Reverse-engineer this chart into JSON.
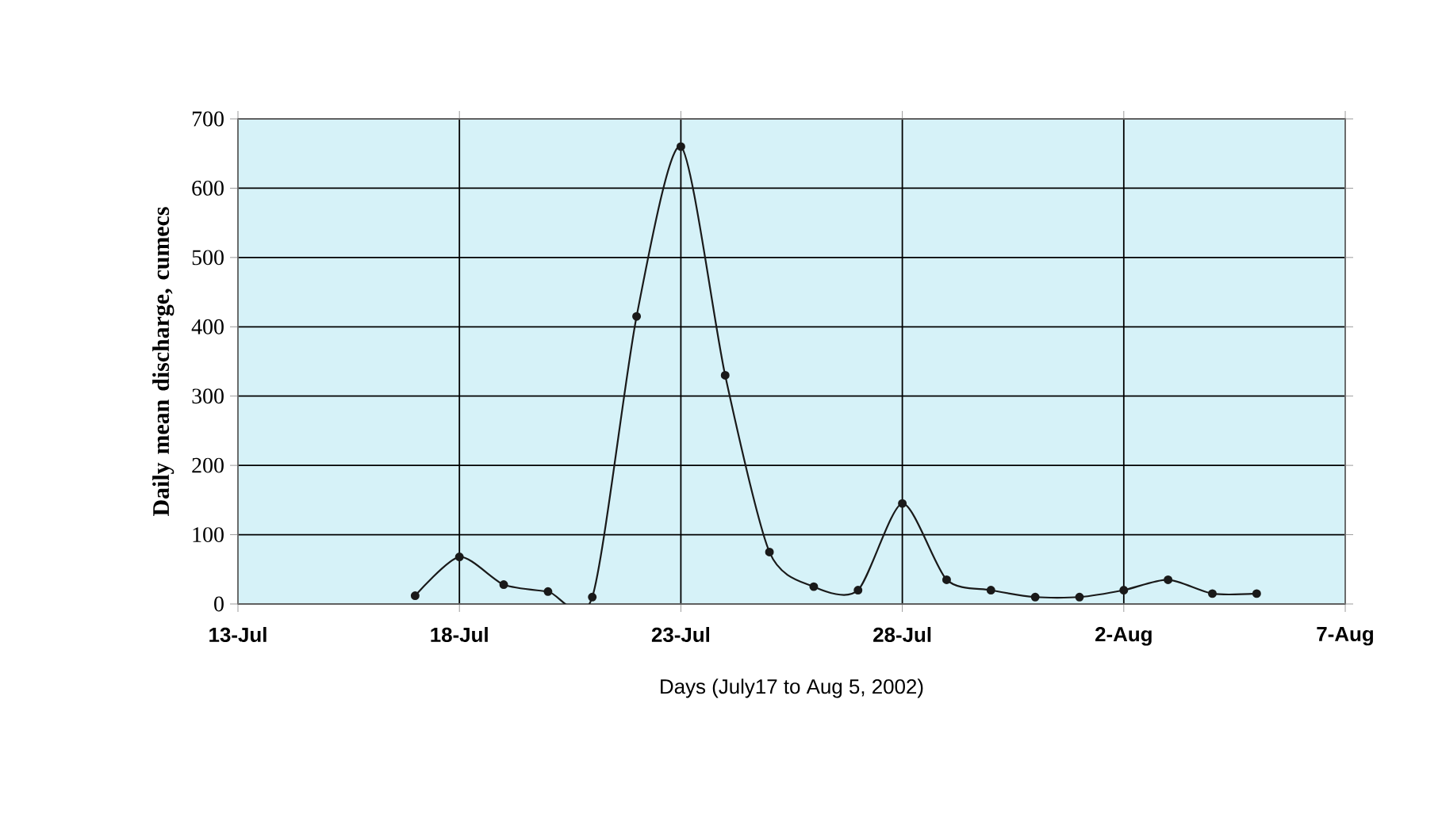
{
  "chart_data": {
    "type": "line",
    "xlabel": "Days (July17 to Aug 5, 2002)",
    "ylabel": "Daily mean discharge, cumecs",
    "x": [
      "2002-07-17",
      "2002-07-18",
      "2002-07-19",
      "2002-07-20",
      "2002-07-21",
      "2002-07-22",
      "2002-07-23",
      "2002-07-24",
      "2002-07-25",
      "2002-07-26",
      "2002-07-27",
      "2002-07-28",
      "2002-07-29",
      "2002-07-30",
      "2002-07-31",
      "2002-08-01",
      "2002-08-02",
      "2002-08-03",
      "2002-08-04",
      "2002-08-05"
    ],
    "series": [
      {
        "color": "#1a1a1a",
        "values": [
          12,
          68,
          28,
          18,
          10,
          415,
          660,
          330,
          75,
          25,
          20,
          145,
          35,
          20,
          10,
          10,
          20,
          35,
          15,
          15
        ]
      }
    ],
    "xlim": [
      "2002-07-13",
      "2002-08-07"
    ],
    "xticks": [
      {
        "value": "2002-07-13",
        "label": "13-Jul"
      },
      {
        "value": "2002-07-18",
        "label": "18-Jul"
      },
      {
        "value": "2002-07-23",
        "label": "23-Jul"
      },
      {
        "value": "2002-07-28",
        "label": "28-Jul"
      },
      {
        "value": "2002-08-02",
        "label": "2-Aug"
      },
      {
        "value": "2002-08-07",
        "label": "7-Aug"
      }
    ],
    "ylim": [
      0,
      700
    ],
    "yticks": [
      0,
      100,
      200,
      300,
      400,
      500,
      600,
      700
    ],
    "grid": true,
    "legend": false,
    "marker": "circle",
    "line_style": "solid"
  }
}
